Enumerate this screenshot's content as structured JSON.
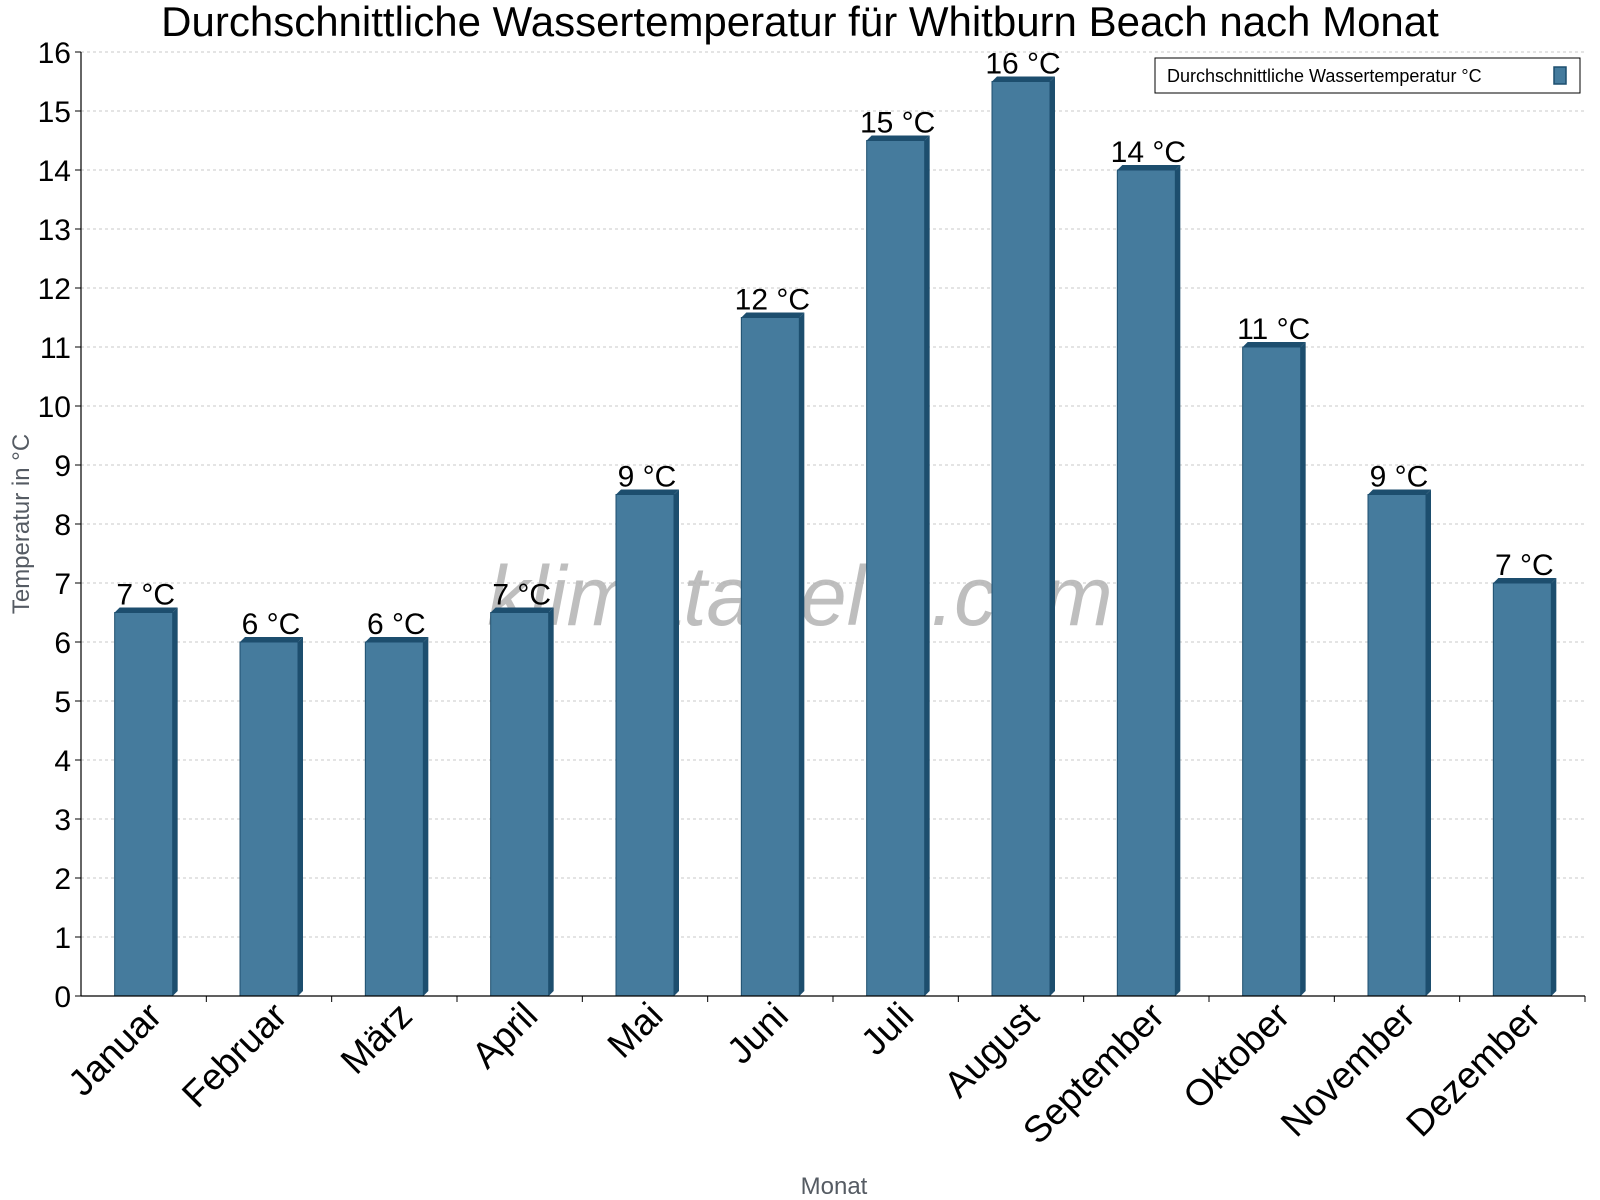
{
  "chart_data": {
    "type": "bar",
    "title": "Durchschnittliche Wassertemperatur für Whitburn Beach nach Monat",
    "xlabel": "Monat",
    "ylabel": "Temperatur in °C",
    "categories": [
      "Januar",
      "Februar",
      "März",
      "April",
      "Mai",
      "Juni",
      "Juli",
      "August",
      "September",
      "Oktober",
      "November",
      "Dezember"
    ],
    "series": [
      {
        "name": "Durchschnittliche Wassertemperatur °C",
        "values": [
          6.5,
          6.0,
          6.0,
          6.5,
          8.5,
          11.5,
          14.5,
          15.5,
          14.0,
          11.0,
          8.5,
          7.0
        ],
        "labels": [
          "7 °C",
          "6 °C",
          "6 °C",
          "7 °C",
          "9 °C",
          "12 °C",
          "15 °C",
          "16 °C",
          "14 °C",
          "11 °C",
          "9 °C",
          "7 °C"
        ]
      }
    ],
    "ylim": [
      0,
      16
    ],
    "yticks": [
      0,
      1,
      2,
      3,
      4,
      5,
      6,
      7,
      8,
      9,
      10,
      11,
      12,
      13,
      14,
      15,
      16
    ],
    "grid": true,
    "legend_position": "top-right",
    "bar_color": "#457b9d",
    "bar_edge_color": "#1d4e6e"
  },
  "watermark": "klimatabelle.com"
}
